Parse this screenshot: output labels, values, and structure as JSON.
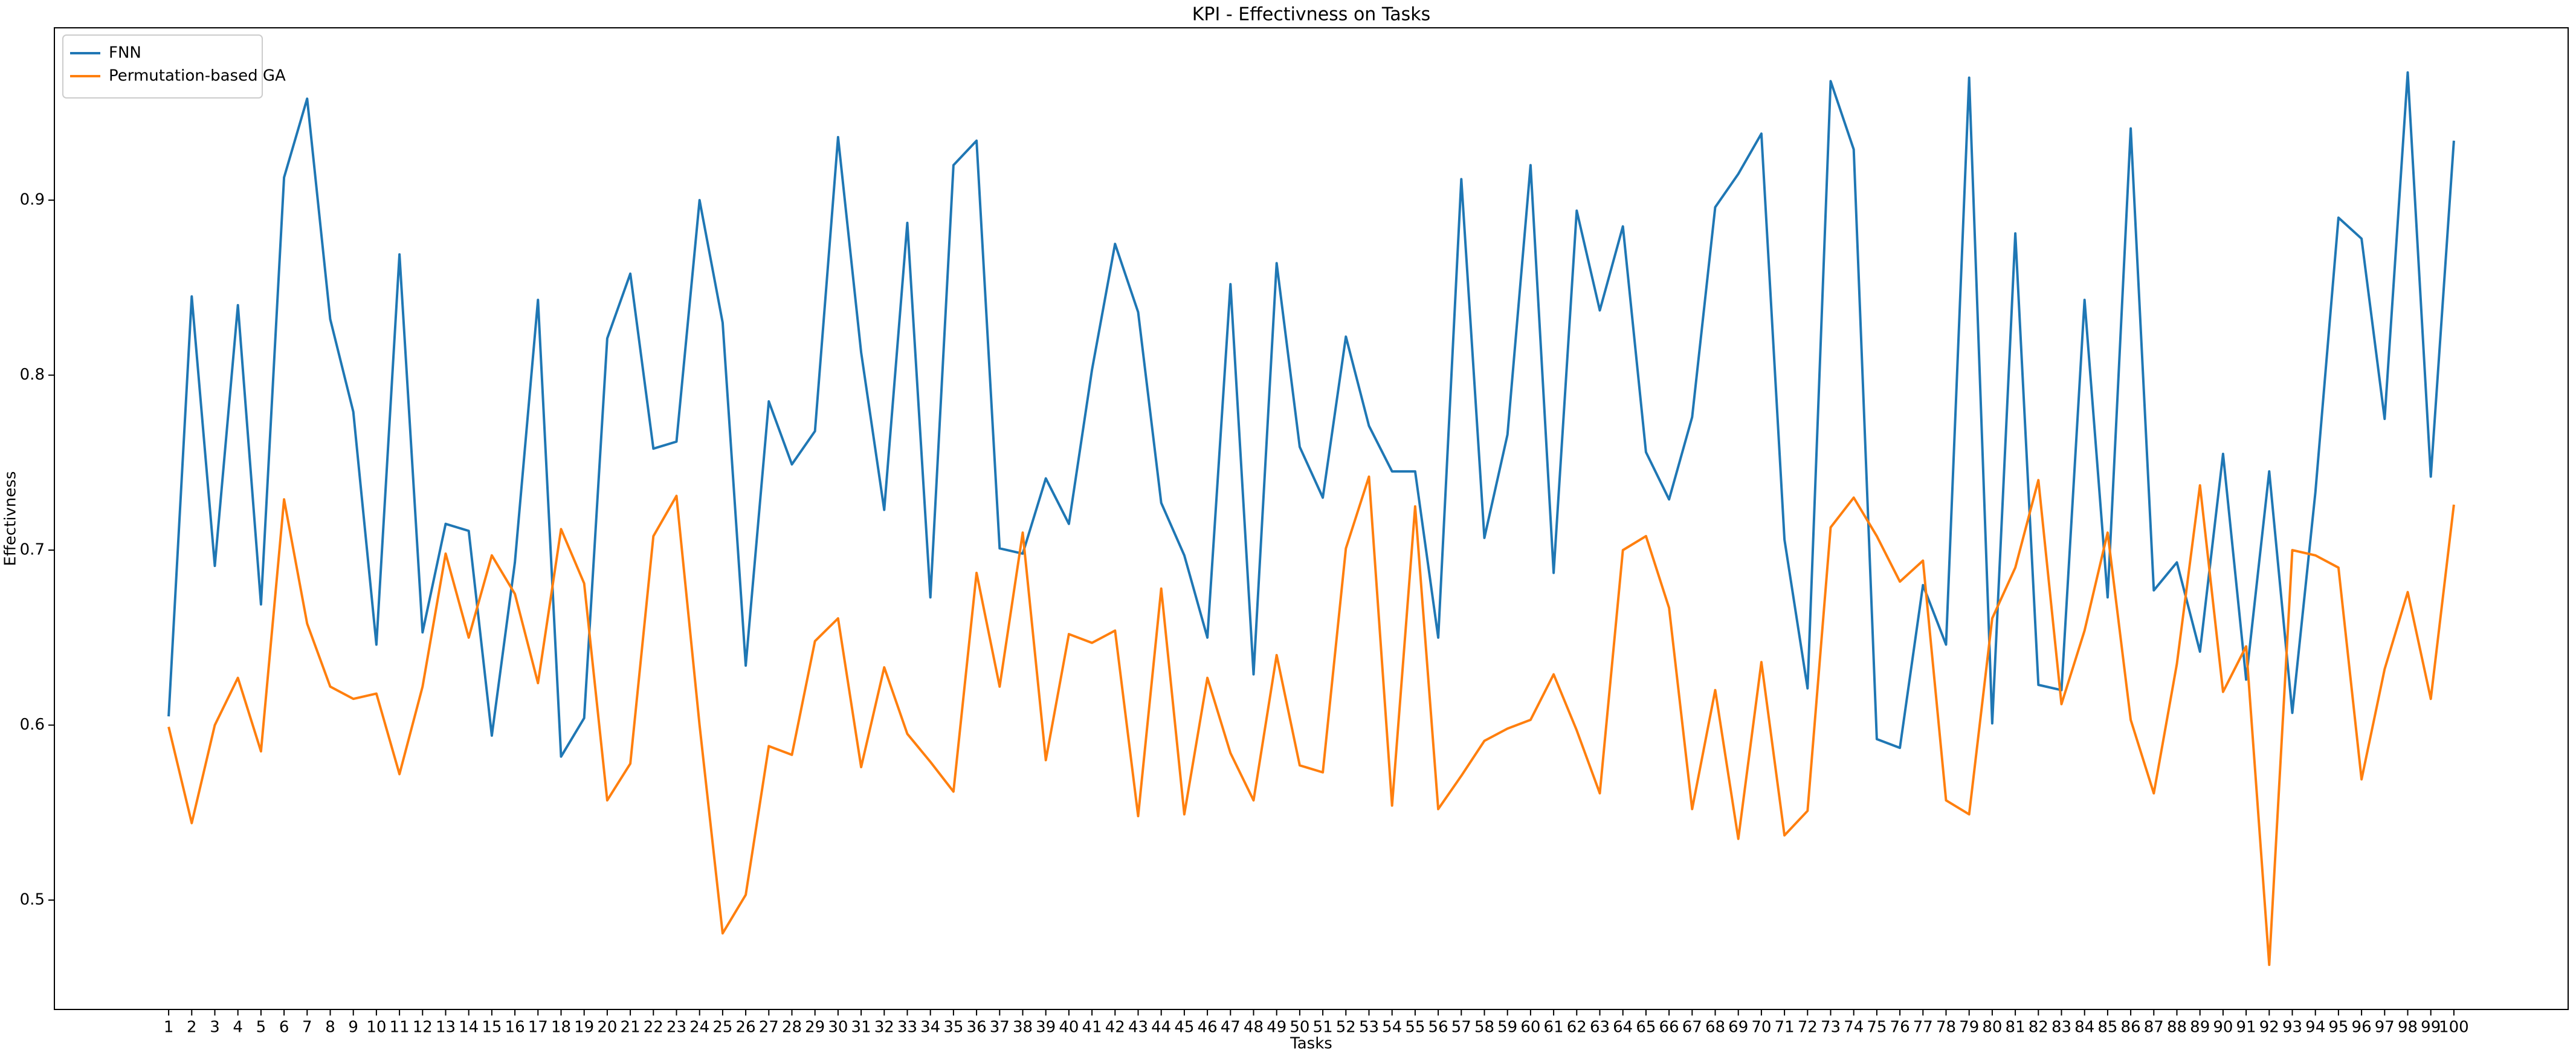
{
  "chart_data": {
    "type": "line",
    "title": "KPI - Effectivness on Tasks",
    "x_label": "Tasks",
    "y_label": "Effectivness",
    "x": [
      1,
      2,
      3,
      4,
      5,
      6,
      7,
      8,
      9,
      10,
      11,
      12,
      13,
      14,
      15,
      16,
      17,
      18,
      19,
      20,
      21,
      22,
      23,
      24,
      25,
      26,
      27,
      28,
      29,
      30,
      31,
      32,
      33,
      34,
      35,
      36,
      37,
      38,
      39,
      40,
      41,
      42,
      43,
      44,
      45,
      46,
      47,
      48,
      49,
      50,
      51,
      52,
      53,
      54,
      55,
      56,
      57,
      58,
      59,
      60,
      61,
      62,
      63,
      64,
      65,
      66,
      67,
      68,
      69,
      70,
      71,
      72,
      73,
      74,
      75,
      76,
      77,
      78,
      79,
      80,
      81,
      82,
      83,
      84,
      85,
      86,
      87,
      88,
      89,
      90,
      91,
      92,
      93,
      94,
      95,
      96,
      97,
      98,
      99,
      100
    ],
    "xticks": [
      1,
      2,
      3,
      4,
      5,
      6,
      7,
      8,
      9,
      10,
      11,
      12,
      13,
      14,
      15,
      16,
      17,
      18,
      19,
      20,
      21,
      22,
      23,
      24,
      25,
      26,
      27,
      28,
      29,
      30,
      31,
      32,
      33,
      34,
      35,
      36,
      37,
      38,
      39,
      40,
      41,
      42,
      43,
      44,
      45,
      46,
      47,
      48,
      49,
      50,
      51,
      52,
      53,
      54,
      55,
      56,
      57,
      58,
      59,
      60,
      61,
      62,
      63,
      64,
      65,
      66,
      67,
      68,
      69,
      70,
      71,
      72,
      73,
      74,
      75,
      76,
      77,
      78,
      79,
      80,
      81,
      82,
      83,
      84,
      85,
      86,
      87,
      88,
      89,
      90,
      91,
      92,
      93,
      94,
      95,
      96,
      97,
      98,
      99,
      100
    ],
    "xlim": [
      -3.95,
      104.95
    ],
    "ylim": [
      0.4375,
      0.9985
    ],
    "yticks": [
      0.5,
      0.6,
      0.7,
      0.8,
      0.9
    ],
    "legend": "upper left",
    "series": [
      {
        "name": "FNN",
        "color": "#1f77b4",
        "values": [
          0.605,
          0.845,
          0.691,
          0.84,
          0.669,
          0.913,
          0.958,
          0.832,
          0.779,
          0.646,
          0.869,
          0.653,
          0.715,
          0.711,
          0.594,
          0.693,
          0.843,
          0.582,
          0.604,
          0.821,
          0.858,
          0.758,
          0.762,
          0.9,
          0.83,
          0.634,
          0.785,
          0.749,
          0.768,
          0.936,
          0.813,
          0.723,
          0.887,
          0.673,
          0.92,
          0.934,
          0.701,
          0.698,
          0.741,
          0.715,
          0.803,
          0.875,
          0.836,
          0.727,
          0.697,
          0.65,
          0.852,
          0.629,
          0.864,
          0.759,
          0.73,
          0.822,
          0.771,
          0.745,
          0.745,
          0.65,
          0.912,
          0.707,
          0.766,
          0.92,
          0.687,
          0.894,
          0.837,
          0.885,
          0.756,
          0.729,
          0.776,
          0.896,
          0.915,
          0.938,
          0.706,
          0.621,
          0.968,
          0.929,
          0.592,
          0.587,
          0.68,
          0.646,
          0.97,
          0.601,
          0.881,
          0.623,
          0.62,
          0.843,
          0.673,
          0.941,
          0.677,
          0.693,
          0.642,
          0.755,
          0.626,
          0.745,
          0.607,
          0.733,
          0.89,
          0.878,
          0.775,
          0.973,
          0.742,
          0.934
        ]
      },
      {
        "name": "Permutation-based GA",
        "color": "#ff7f0e",
        "values": [
          0.599,
          0.544,
          0.6,
          0.627,
          0.585,
          0.729,
          0.658,
          0.622,
          0.615,
          0.618,
          0.572,
          0.622,
          0.698,
          0.65,
          0.697,
          0.675,
          0.624,
          0.712,
          0.681,
          0.557,
          0.578,
          0.708,
          0.731,
          0.6,
          0.481,
          0.503,
          0.588,
          0.583,
          0.648,
          0.661,
          0.576,
          0.633,
          0.595,
          0.579,
          0.562,
          0.687,
          0.622,
          0.71,
          0.58,
          0.652,
          0.647,
          0.654,
          0.548,
          0.678,
          0.549,
          0.627,
          0.584,
          0.557,
          0.64,
          0.577,
          0.573,
          0.701,
          0.742,
          0.554,
          0.725,
          0.552,
          0.571,
          0.591,
          0.598,
          0.603,
          0.629,
          0.597,
          0.561,
          0.7,
          0.708,
          0.667,
          0.552,
          0.62,
          0.535,
          0.636,
          0.537,
          0.551,
          0.713,
          0.73,
          0.708,
          0.682,
          0.694,
          0.557,
          0.549,
          0.661,
          0.69,
          0.74,
          0.612,
          0.654,
          0.71,
          0.603,
          0.561,
          0.635,
          0.737,
          0.619,
          0.645,
          0.463,
          0.7,
          0.697,
          0.69,
          0.569,
          0.632,
          0.676,
          0.615,
          0.726
        ]
      }
    ]
  }
}
